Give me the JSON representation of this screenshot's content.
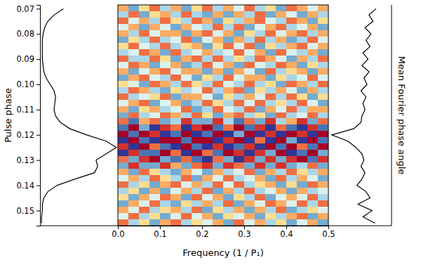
{
  "chart_data": {
    "type": "heatmap",
    "xlabel": "Frequency (1 / P₁)",
    "ylabel": "Pulse phase",
    "xlim": [
      0,
      0.5
    ],
    "ylim": [
      0.0685,
      0.156
    ],
    "xticks": [
      {
        "value": 0,
        "label": "0.0"
      },
      0.1,
      0.2,
      0.3,
      0.4,
      0.5
    ],
    "yticks": [
      0.07,
      0.08,
      0.09,
      {
        "value": 0.1,
        "label": "0.10"
      },
      0.11,
      0.12,
      0.13,
      0.14,
      0.15
    ],
    "x": [
      0,
      0.025,
      0.05,
      0.075,
      0.1,
      0.125,
      0.15,
      0.175,
      0.2,
      0.225,
      0.25,
      0.275,
      0.3,
      0.325,
      0.35,
      0.375,
      0.4,
      0.425,
      0.45,
      0.475,
      0.5
    ],
    "y": [
      0.0685,
      0.071,
      0.0735,
      0.076,
      0.0785,
      0.081,
      0.0835,
      0.086,
      0.0885,
      0.091,
      0.0935,
      0.096,
      0.0985,
      0.101,
      0.1035,
      0.106,
      0.1085,
      0.111,
      0.1135,
      0.116,
      0.1185,
      0.121,
      0.1235,
      0.126,
      0.1285,
      0.131,
      0.1335,
      0.136,
      0.1385,
      0.141,
      0.1435,
      0.146,
      0.1485,
      0.151,
      0.1535,
      0.156
    ],
    "clim": [
      -5,
      5
    ],
    "cells": [
      [
        2,
        -3,
        1,
        3,
        -2,
        2,
        -3,
        1,
        3,
        -2,
        2,
        -1,
        3,
        -2,
        1,
        -3,
        3,
        2,
        -1,
        2
      ],
      [
        -2,
        3,
        -3,
        1,
        2,
        -2,
        3,
        -2,
        -3,
        2,
        -3,
        2,
        -2,
        3,
        -3,
        2,
        -1,
        -3,
        2,
        -2
      ],
      [
        3,
        -1,
        2,
        -2,
        3,
        1,
        -2,
        3,
        2,
        -3,
        1,
        -2,
        2,
        3,
        -1,
        -2,
        3,
        2,
        -3,
        1
      ],
      [
        -1,
        2,
        -3,
        2,
        -1,
        -3,
        2,
        -1,
        -2,
        3,
        -2,
        3,
        -3,
        -1,
        2,
        3,
        -2,
        -1,
        2,
        -3
      ],
      [
        2,
        -2,
        3,
        -1,
        2,
        2,
        -3,
        2,
        3,
        -1,
        2,
        -3,
        1,
        -2,
        3,
        -1,
        2,
        3,
        -2,
        2
      ],
      [
        -3,
        1,
        -2,
        3,
        -2,
        -1,
        3,
        -3,
        -1,
        2,
        -3,
        2,
        -2,
        3,
        -2,
        2,
        -3,
        -2,
        3,
        -1
      ],
      [
        1,
        3,
        -1,
        -2,
        3,
        -2,
        1,
        2,
        -3,
        1,
        3,
        -1,
        3,
        -3,
        1,
        -2,
        2,
        3,
        -1,
        2
      ],
      [
        -2,
        -1,
        3,
        2,
        -3,
        3,
        -2,
        -1,
        2,
        -2,
        -1,
        3,
        -1,
        2,
        -3,
        3,
        -1,
        -2,
        2,
        -3
      ],
      [
        3,
        -2,
        -2,
        3,
        1,
        -3,
        2,
        3,
        -2,
        3,
        -2,
        1,
        -2,
        3,
        2,
        -1,
        -3,
        2,
        -2,
        3
      ],
      [
        -1,
        3,
        2,
        -3,
        -1,
        2,
        -3,
        -2,
        3,
        -1,
        2,
        -3,
        3,
        -1,
        -2,
        3,
        2,
        -3,
        1,
        -2
      ],
      [
        2,
        -3,
        -1,
        2,
        3,
        -1,
        2,
        2,
        -3,
        2,
        -3,
        2,
        -1,
        -3,
        3,
        -2,
        1,
        2,
        -3,
        2
      ],
      [
        -3,
        2,
        3,
        -1,
        -2,
        3,
        -1,
        -3,
        1,
        -2,
        3,
        -1,
        2,
        2,
        -3,
        1,
        -2,
        -1,
        3,
        -1
      ],
      [
        1,
        -1,
        -3,
        3,
        2,
        -2,
        3,
        1,
        -2,
        3,
        -1,
        -2,
        3,
        -2,
        1,
        -3,
        3,
        2,
        -2,
        3
      ],
      [
        -2,
        3,
        2,
        -2,
        -3,
        1,
        -2,
        -1,
        3,
        -2,
        2,
        3,
        -3,
        1,
        -2,
        2,
        -1,
        -3,
        2,
        -2
      ],
      [
        3,
        -2,
        -1,
        1,
        3,
        -3,
        2,
        2,
        -1,
        -3,
        1,
        -2,
        2,
        -1,
        3,
        -2,
        3,
        1,
        -3,
        1
      ],
      [
        -1,
        2,
        3,
        -3,
        -1,
        2,
        -3,
        -2,
        3,
        1,
        -2,
        3,
        -1,
        3,
        -2,
        1,
        -2,
        3,
        -1,
        -3
      ],
      [
        2,
        -3,
        1,
        2,
        -2,
        -1,
        3,
        -3,
        -2,
        3,
        -1,
        -2,
        3,
        -3,
        2,
        -1,
        3,
        -2,
        2,
        2
      ],
      [
        -3,
        3,
        -2,
        -1,
        3,
        2,
        -2,
        3,
        1,
        -3,
        2,
        3,
        -2,
        1,
        -3,
        3,
        -2,
        -1,
        3,
        -2
      ],
      [
        3,
        -4,
        2,
        3,
        -3,
        -2,
        4,
        -3,
        -3,
        4,
        -2,
        -4,
        3,
        -3,
        4,
        -2,
        2,
        4,
        -3,
        3
      ],
      [
        -4,
        5,
        -3,
        -5,
        4,
        3,
        -5,
        4,
        5,
        -4,
        3,
        5,
        -4,
        4,
        -5,
        3,
        -4,
        -5,
        4,
        -4
      ],
      [
        5,
        -4,
        5,
        4,
        -5,
        -4,
        5,
        -5,
        -4,
        5,
        -5,
        -3,
        5,
        -5,
        4,
        -5,
        5,
        4,
        -5,
        5
      ],
      [
        -5,
        5,
        -4,
        -5,
        5,
        5,
        -4,
        5,
        5,
        -5,
        4,
        5,
        -5,
        3,
        -5,
        5,
        -3,
        -5,
        5,
        -4
      ],
      [
        4,
        -5,
        5,
        3,
        -4,
        -5,
        5,
        -4,
        -5,
        4,
        -5,
        -4,
        4,
        -5,
        5,
        -4,
        5,
        3,
        -4,
        5
      ],
      [
        -5,
        4,
        -4,
        -4,
        5,
        3,
        -5,
        5,
        3,
        -4,
        5,
        4,
        -5,
        4,
        -3,
        5,
        -5,
        -4,
        5,
        -3
      ],
      [
        3,
        -3,
        4,
        5,
        -3,
        -4,
        3,
        -4,
        -5,
        3,
        -3,
        -5,
        4,
        -3,
        4,
        -3,
        4,
        5,
        -4,
        4
      ],
      [
        -3,
        4,
        -3,
        -3,
        4,
        2,
        -3,
        3,
        4,
        -3,
        4,
        3,
        -3,
        4,
        -3,
        4,
        -3,
        -2,
        3,
        -3
      ],
      [
        2,
        -3,
        3,
        1,
        -2,
        -3,
        2,
        -1,
        -3,
        2,
        -2,
        -1,
        3,
        -3,
        2,
        -2,
        3,
        1,
        -2,
        2
      ],
      [
        -1,
        2,
        -2,
        3,
        1,
        -2,
        3,
        -3,
        2,
        -1,
        3,
        -2,
        -1,
        2,
        -3,
        3,
        -2,
        2,
        -1,
        -3
      ],
      [
        3,
        -2,
        1,
        -3,
        2,
        3,
        -1,
        2,
        -2,
        3,
        -1,
        3,
        -2,
        1,
        2,
        -3,
        1,
        -3,
        3,
        2
      ],
      [
        -2,
        1,
        -3,
        2,
        -3,
        -1,
        2,
        -2,
        3,
        -3,
        2,
        -2,
        3,
        -2,
        -1,
        2,
        -3,
        2,
        -2,
        -1
      ],
      [
        1,
        -3,
        2,
        -1,
        3,
        2,
        -3,
        3,
        -1,
        2,
        -3,
        1,
        -2,
        3,
        -3,
        -1,
        2,
        -1,
        3,
        -2
      ],
      [
        -3,
        2,
        -1,
        3,
        -2,
        -3,
        1,
        -2,
        2,
        -2,
        3,
        -3,
        2,
        -1,
        3,
        2,
        -1,
        3,
        -2,
        3
      ],
      [
        2,
        -1,
        3,
        -2,
        1,
        2,
        -2,
        3,
        -3,
        1,
        -2,
        2,
        -3,
        2,
        -2,
        3,
        -3,
        -2,
        1,
        -1
      ],
      [
        -1,
        3,
        -2,
        1,
        -3,
        -1,
        3,
        -1,
        2,
        -3,
        1,
        -1,
        2,
        -3,
        1,
        -2,
        2,
        3,
        -3,
        2
      ],
      [
        3,
        -2,
        1,
        -3,
        2,
        3,
        -2,
        1,
        -1,
        2,
        -3,
        3,
        -1,
        2,
        -2,
        1,
        -3,
        -1,
        2,
        -3
      ]
    ],
    "profile": {
      "xlim": [
        0,
        1
      ],
      "y": [
        0.07,
        0.0725,
        0.075,
        0.0775,
        0.08,
        0.0825,
        0.085,
        0.0875,
        0.09,
        0.0925,
        0.095,
        0.0975,
        0.1,
        0.1025,
        0.105,
        0.1075,
        0.11,
        0.1125,
        0.115,
        0.1175,
        0.12,
        0.1225,
        0.125,
        0.1275,
        0.13,
        0.1325,
        0.135,
        0.1375,
        0.14,
        0.1425,
        0.145,
        0.1475,
        0.15,
        0.1525,
        0.155
      ],
      "values": [
        0.3,
        0.18,
        0.1,
        0.06,
        0.04,
        0.03,
        0.03,
        0.03,
        0.03,
        0.04,
        0.05,
        0.08,
        0.13,
        0.18,
        0.2,
        0.19,
        0.18,
        0.2,
        0.26,
        0.38,
        0.6,
        0.85,
        0.98,
        0.85,
        0.72,
        0.74,
        0.7,
        0.45,
        0.22,
        0.1,
        0.05,
        0.03,
        0.03,
        0.02,
        0.02
      ]
    },
    "phase_angle": {
      "label": "Mean Fourier phase angle",
      "xlim": [
        -3.14,
        3.14
      ],
      "y": [
        0.07,
        0.0725,
        0.075,
        0.0775,
        0.08,
        0.0825,
        0.085,
        0.0875,
        0.09,
        0.0925,
        0.095,
        0.0975,
        0.1,
        0.1025,
        0.105,
        0.1075,
        0.11,
        0.1125,
        0.115,
        0.1175,
        0.12,
        0.1225,
        0.125,
        0.1275,
        0.13,
        0.1325,
        0.135,
        0.1375,
        0.14,
        0.1425,
        0.145,
        0.1475,
        0.15,
        0.1525,
        0.155
      ],
      "values": [
        1.6,
        0.9,
        1.3,
        0.5,
        1.1,
        0.6,
        1.0,
        0.3,
        0.8,
        0.2,
        0.9,
        0.4,
        0.7,
        0.1,
        0.6,
        0.3,
        0.5,
        0.2,
        0.1,
        -0.6,
        -2.8,
        -1.2,
        -0.4,
        0.2,
        0.4,
        0.1,
        0.5,
        0.2,
        -0.3,
        0.6,
        1.0,
        -0.2,
        1.2,
        0.3,
        1.5
      ]
    }
  }
}
